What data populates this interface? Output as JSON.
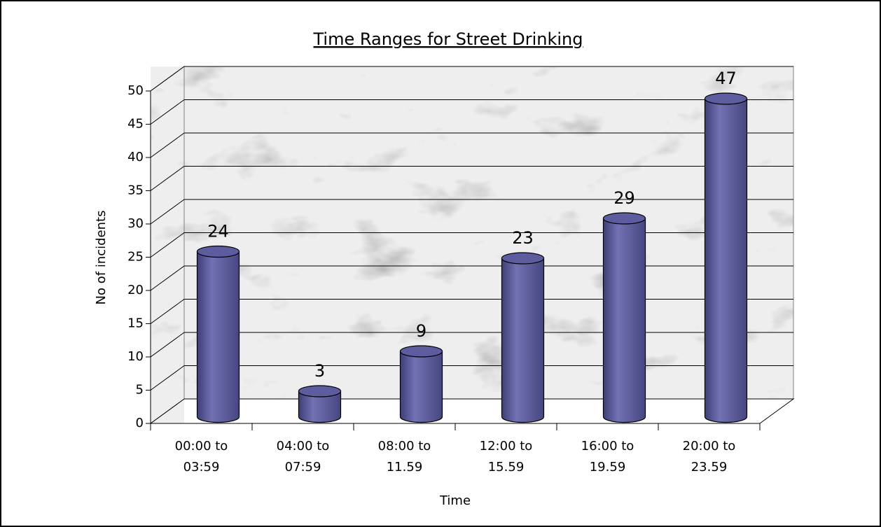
{
  "chart_data": {
    "type": "bar",
    "title": "Time Ranges for Street Drinking",
    "x_label": "Time",
    "y_label": "No of incidents",
    "categories": [
      "00:00 to 03:59",
      "04:00 to 07:59",
      "08:00 to 11.59",
      "12:00 to 15.59",
      "16:00 to 19.59",
      "20:00 to 23.59"
    ],
    "values": [
      24,
      3,
      9,
      23,
      29,
      47
    ],
    "color": "#5c5c9e",
    "ylim": [
      0,
      50
    ],
    "yticks": [
      0,
      5,
      10,
      15,
      20,
      25,
      30,
      35,
      40,
      45,
      50
    ],
    "grid": true
  }
}
